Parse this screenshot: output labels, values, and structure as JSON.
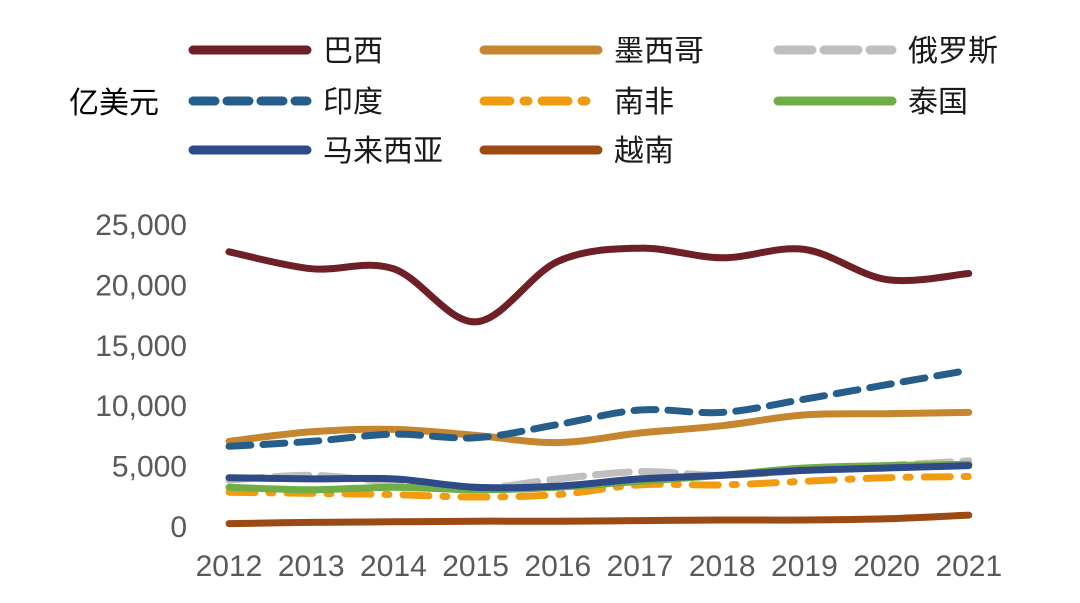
{
  "chart_data": {
    "type": "line",
    "title": "",
    "xlabel": "",
    "ylabel": "亿美元",
    "x": [
      "2012",
      "2013",
      "2014",
      "2015",
      "2016",
      "2017",
      "2018",
      "2019",
      "2020",
      "2021"
    ],
    "ylim": [
      0,
      25000
    ],
    "yticks": [
      "0",
      "5,000",
      "10,000",
      "15,000",
      "20,000",
      "25,000"
    ],
    "grid": false,
    "legend_position": "top",
    "series": [
      {
        "name": "巴西",
        "color": "#6e2026",
        "style": "solid",
        "values": [
          22700,
          21300,
          21300,
          16900,
          21900,
          23000,
          22200,
          22900,
          20400,
          20900
        ]
      },
      {
        "name": "墨西哥",
        "color": "#c5862f",
        "style": "solid",
        "values": [
          7000,
          7800,
          8000,
          7500,
          6900,
          7700,
          8300,
          9200,
          9300,
          9400
        ]
      },
      {
        "name": "俄罗斯",
        "color": "#bfbfbf",
        "style": "longdash",
        "values": [
          3800,
          4200,
          3600,
          3100,
          3900,
          4500,
          4200,
          4600,
          5000,
          5400
        ]
      },
      {
        "name": "印度",
        "color": "#255e8a",
        "style": "dash",
        "values": [
          6600,
          7000,
          7600,
          7300,
          8400,
          9600,
          9400,
          10500,
          11700,
          12900
        ]
      },
      {
        "name": "南非",
        "color": "#f19b0f",
        "style": "dashdot",
        "values": [
          2800,
          2700,
          2600,
          2400,
          2600,
          3400,
          3400,
          3700,
          4000,
          4100
        ]
      },
      {
        "name": "泰国",
        "color": "#70ad47",
        "style": "solid",
        "values": [
          3200,
          3000,
          3200,
          3000,
          3200,
          3700,
          4200,
          4800,
          5000,
          5100
        ]
      },
      {
        "name": "马来西亚",
        "color": "#2e4a87",
        "style": "solid",
        "values": [
          4000,
          3900,
          3900,
          3200,
          3300,
          3900,
          4200,
          4600,
          4800,
          5000
        ]
      },
      {
        "name": "越南",
        "color": "#9c4a14",
        "style": "solid",
        "values": [
          200,
          300,
          350,
          400,
          400,
          450,
          500,
          500,
          600,
          900
        ]
      }
    ]
  }
}
